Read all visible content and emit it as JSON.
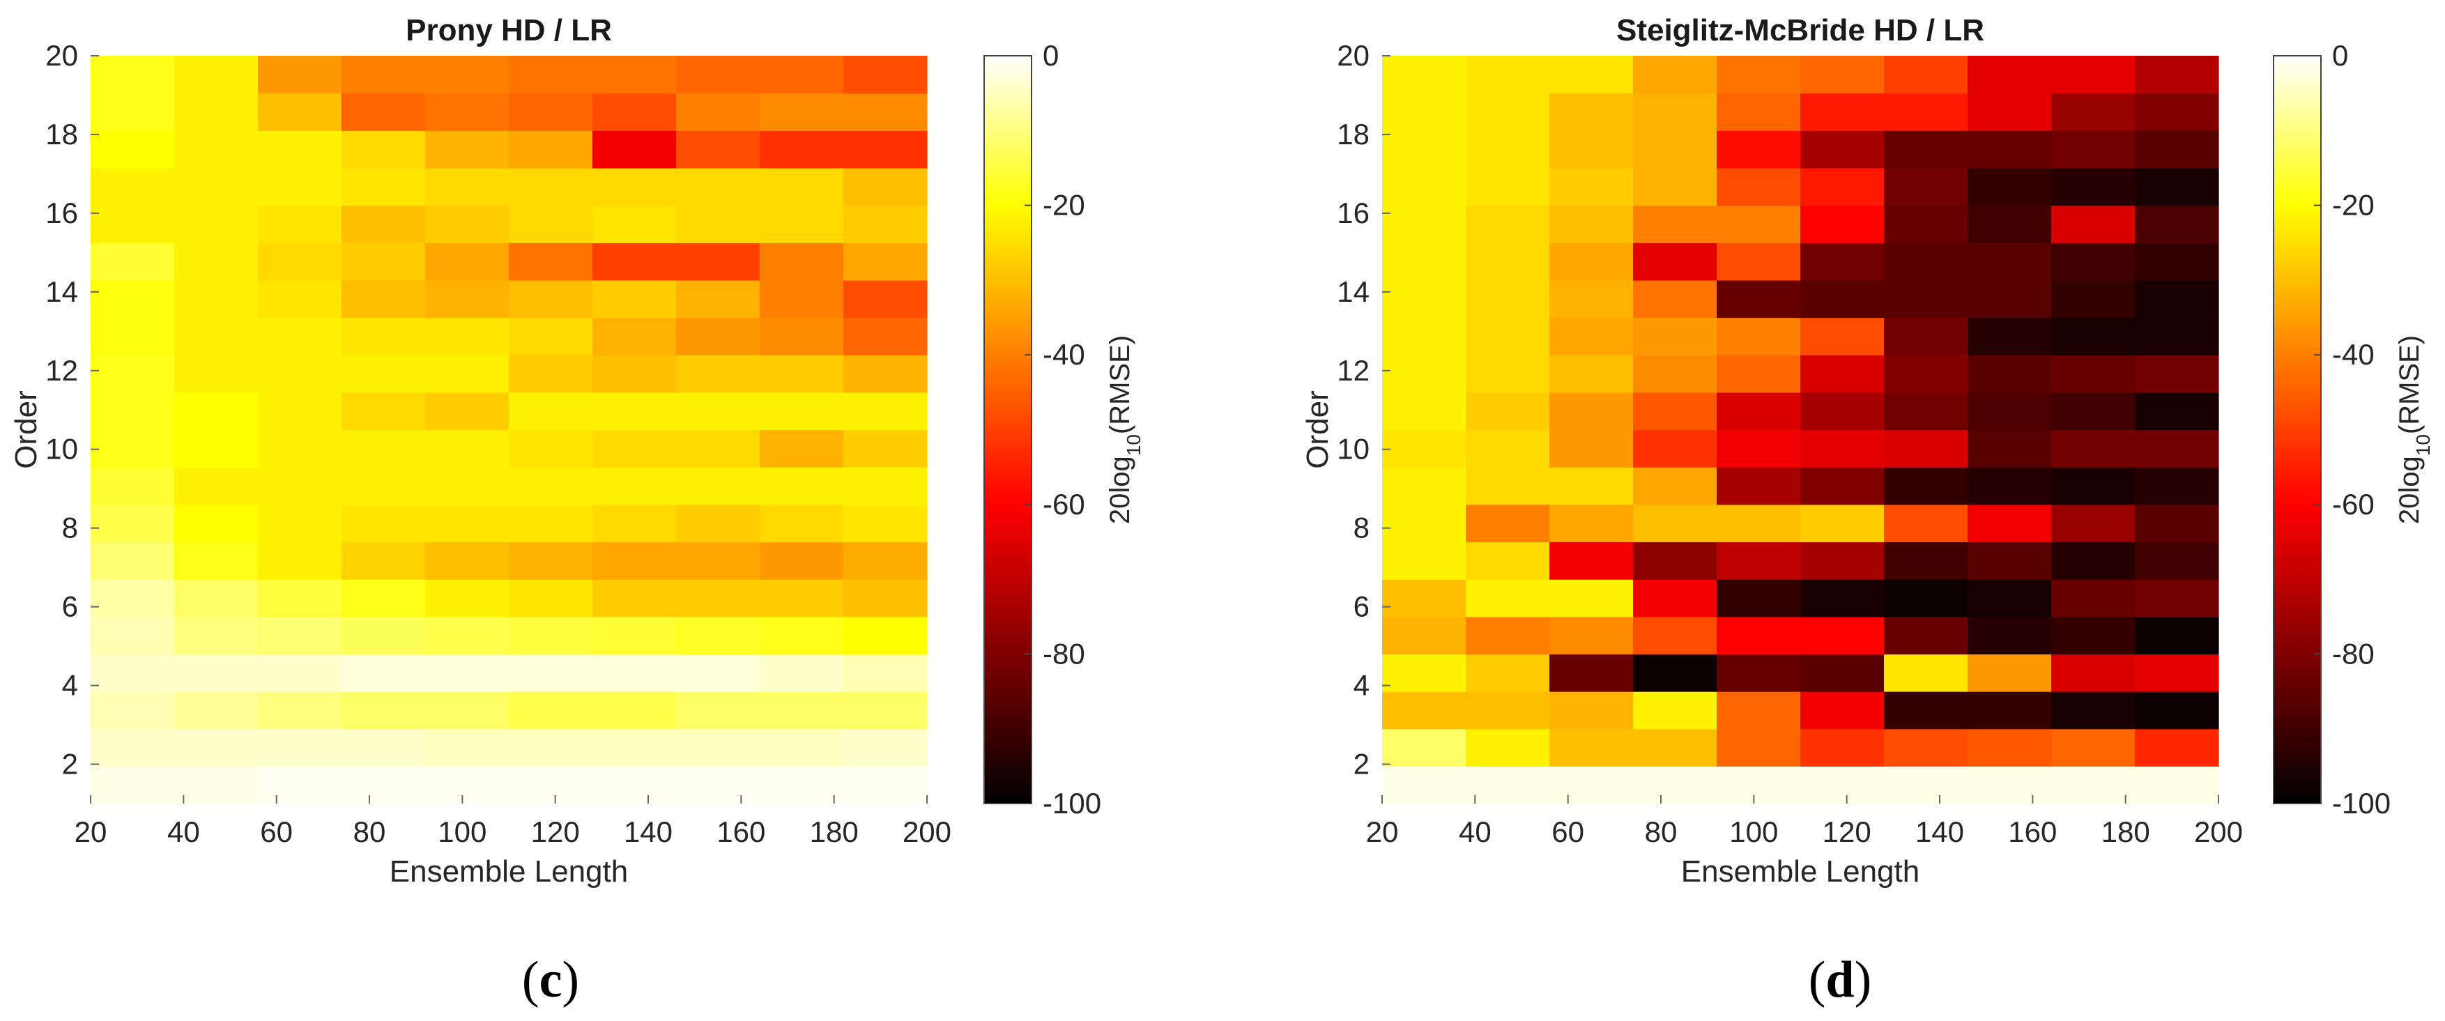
{
  "chart_data": [
    {
      "type": "heatmap",
      "title": "Prony HD / LR",
      "xlabel": "Ensemble Length",
      "ylabel": "Order",
      "xlim": [
        20,
        200
      ],
      "ylim": [
        1,
        20
      ],
      "x": [
        20,
        40,
        60,
        80,
        100,
        120,
        140,
        160,
        180,
        200
      ],
      "y": [
        1,
        2,
        3,
        4,
        5,
        6,
        7,
        8,
        9,
        10,
        11,
        12,
        13,
        14,
        15,
        16,
        17,
        18,
        19,
        20
      ],
      "xticks": [
        "20",
        "40",
        "60",
        "80",
        "100",
        "120",
        "140",
        "160",
        "180",
        "200"
      ],
      "yticks": [
        "2",
        "4",
        "6",
        "8",
        "10",
        "12",
        "14",
        "16",
        "18",
        "20"
      ],
      "colorbar": {
        "label": "20log10(RMSE)",
        "label_base": "20log",
        "label_sub": "10",
        "label_rest": "(RMSE)",
        "lim": [
          -100,
          0
        ],
        "ticks": [
          "0",
          "-20",
          "-40",
          "-60",
          "-80",
          "-100"
        ]
      },
      "panel_label": "c",
      "values": [
        [
          -2,
          -2,
          -1,
          -1,
          -1,
          -1,
          -1,
          -1,
          -1,
          -1
        ],
        [
          -4,
          -4,
          -4,
          -4,
          -5,
          -5,
          -5,
          -5,
          -5,
          -4
        ],
        [
          -6,
          -8,
          -10,
          -12,
          -12,
          -14,
          -14,
          -12,
          -12,
          -12
        ],
        [
          -4,
          -4,
          -4,
          -3,
          -3,
          -3,
          -3,
          -3,
          -4,
          -6
        ],
        [
          -6,
          -10,
          -11,
          -13,
          -14,
          -15,
          -16,
          -17,
          -18,
          -20
        ],
        [
          -7,
          -12,
          -15,
          -18,
          -22,
          -24,
          -28,
          -28,
          -28,
          -30
        ],
        [
          -11,
          -18,
          -22,
          -27,
          -30,
          -32,
          -34,
          -34,
          -36,
          -33
        ],
        [
          -14,
          -20,
          -22,
          -24,
          -24,
          -24,
          -26,
          -28,
          -26,
          -24
        ],
        [
          -16,
          -22,
          -22,
          -22,
          -22,
          -22,
          -22,
          -22,
          -22,
          -22
        ],
        [
          -18,
          -20,
          -22,
          -22,
          -22,
          -24,
          -26,
          -26,
          -32,
          -28
        ],
        [
          -18,
          -20,
          -22,
          -26,
          -28,
          -22,
          -22,
          -22,
          -22,
          -22
        ],
        [
          -18,
          -22,
          -22,
          -22,
          -22,
          -28,
          -30,
          -28,
          -28,
          -32
        ],
        [
          -19,
          -22,
          -22,
          -24,
          -24,
          -26,
          -32,
          -36,
          -38,
          -44
        ],
        [
          -19,
          -22,
          -24,
          -30,
          -32,
          -30,
          -28,
          -32,
          -40,
          -48
        ],
        [
          -16,
          -22,
          -26,
          -28,
          -34,
          -42,
          -50,
          -50,
          -40,
          -34
        ],
        [
          -22,
          -22,
          -24,
          -30,
          -28,
          -26,
          -24,
          -26,
          -26,
          -28
        ],
        [
          -22,
          -22,
          -22,
          -24,
          -26,
          -26,
          -26,
          -26,
          -26,
          -30
        ],
        [
          -20,
          -22,
          -22,
          -26,
          -32,
          -34,
          -62,
          -48,
          -52,
          -52
        ],
        [
          -18,
          -22,
          -30,
          -44,
          -42,
          -44,
          -48,
          -40,
          -38,
          -38
        ],
        [
          -18,
          -22,
          -36,
          -40,
          -40,
          -42,
          -42,
          -44,
          -44,
          -48
        ]
      ]
    },
    {
      "type": "heatmap",
      "title": "Steiglitz-McBride HD / LR",
      "xlabel": "Ensemble Length",
      "ylabel": "Order",
      "xlim": [
        20,
        200
      ],
      "ylim": [
        1,
        20
      ],
      "x": [
        20,
        40,
        60,
        80,
        100,
        120,
        140,
        160,
        180,
        200
      ],
      "y": [
        1,
        2,
        3,
        4,
        5,
        6,
        7,
        8,
        9,
        10,
        11,
        12,
        13,
        14,
        15,
        16,
        17,
        18,
        19,
        20
      ],
      "xticks": [
        "20",
        "40",
        "60",
        "80",
        "100",
        "120",
        "140",
        "160",
        "180",
        "200"
      ],
      "yticks": [
        "2",
        "4",
        "6",
        "8",
        "10",
        "12",
        "14",
        "16",
        "18",
        "20"
      ],
      "colorbar": {
        "label": "20log10(RMSE)",
        "label_base": "20log",
        "label_sub": "10",
        "label_rest": "(RMSE)",
        "lim": [
          -100,
          0
        ],
        "ticks": [
          "0",
          "-20",
          "-40",
          "-60",
          "-80",
          "-100"
        ]
      },
      "panel_label": "d",
      "values": [
        [
          -2,
          -2,
          -2,
          -2,
          -2,
          -2,
          -2,
          -2,
          -2,
          -2
        ],
        [
          -12,
          -22,
          -30,
          -30,
          -44,
          -52,
          -48,
          -46,
          -44,
          -54
        ],
        [
          -30,
          -30,
          -32,
          -22,
          -44,
          -62,
          -92,
          -92,
          -96,
          -98
        ],
        [
          -22,
          -28,
          -84,
          -98,
          -84,
          -86,
          -24,
          -36,
          -66,
          -64
        ],
        [
          -32,
          -40,
          -38,
          -48,
          -60,
          -60,
          -84,
          -94,
          -92,
          -98
        ],
        [
          -30,
          -22,
          -22,
          -62,
          -92,
          -96,
          -98,
          -96,
          -84,
          -82
        ],
        [
          -22,
          -26,
          -62,
          -78,
          -70,
          -74,
          -90,
          -86,
          -94,
          -90
        ],
        [
          -22,
          -40,
          -34,
          -30,
          -30,
          -28,
          -48,
          -62,
          -76,
          -86
        ],
        [
          -22,
          -26,
          -26,
          -34,
          -74,
          -80,
          -92,
          -94,
          -96,
          -94
        ],
        [
          -24,
          -26,
          -36,
          -52,
          -62,
          -64,
          -66,
          -86,
          -82,
          -82
        ],
        [
          -22,
          -28,
          -36,
          -46,
          -66,
          -74,
          -82,
          -88,
          -90,
          -96
        ],
        [
          -22,
          -26,
          -30,
          -38,
          -44,
          -66,
          -80,
          -86,
          -84,
          -82
        ],
        [
          -22,
          -26,
          -34,
          -36,
          -40,
          -48,
          -82,
          -94,
          -96,
          -96
        ],
        [
          -22,
          -26,
          -32,
          -42,
          -84,
          -86,
          -86,
          -86,
          -92,
          -96
        ],
        [
          -22,
          -26,
          -34,
          -64,
          -48,
          -82,
          -86,
          -86,
          -90,
          -92
        ],
        [
          -22,
          -26,
          -30,
          -40,
          -40,
          -60,
          -84,
          -90,
          -66,
          -88
        ],
        [
          -22,
          -24,
          -28,
          -32,
          -48,
          -56,
          -82,
          -92,
          -94,
          -96
        ],
        [
          -22,
          -24,
          -30,
          -32,
          -58,
          -74,
          -84,
          -84,
          -82,
          -86
        ],
        [
          -22,
          -24,
          -30,
          -32,
          -44,
          -56,
          -56,
          -64,
          -76,
          -80
        ],
        [
          -22,
          -24,
          -24,
          -34,
          -42,
          -44,
          -50,
          -64,
          -64,
          -72
        ]
      ]
    }
  ]
}
